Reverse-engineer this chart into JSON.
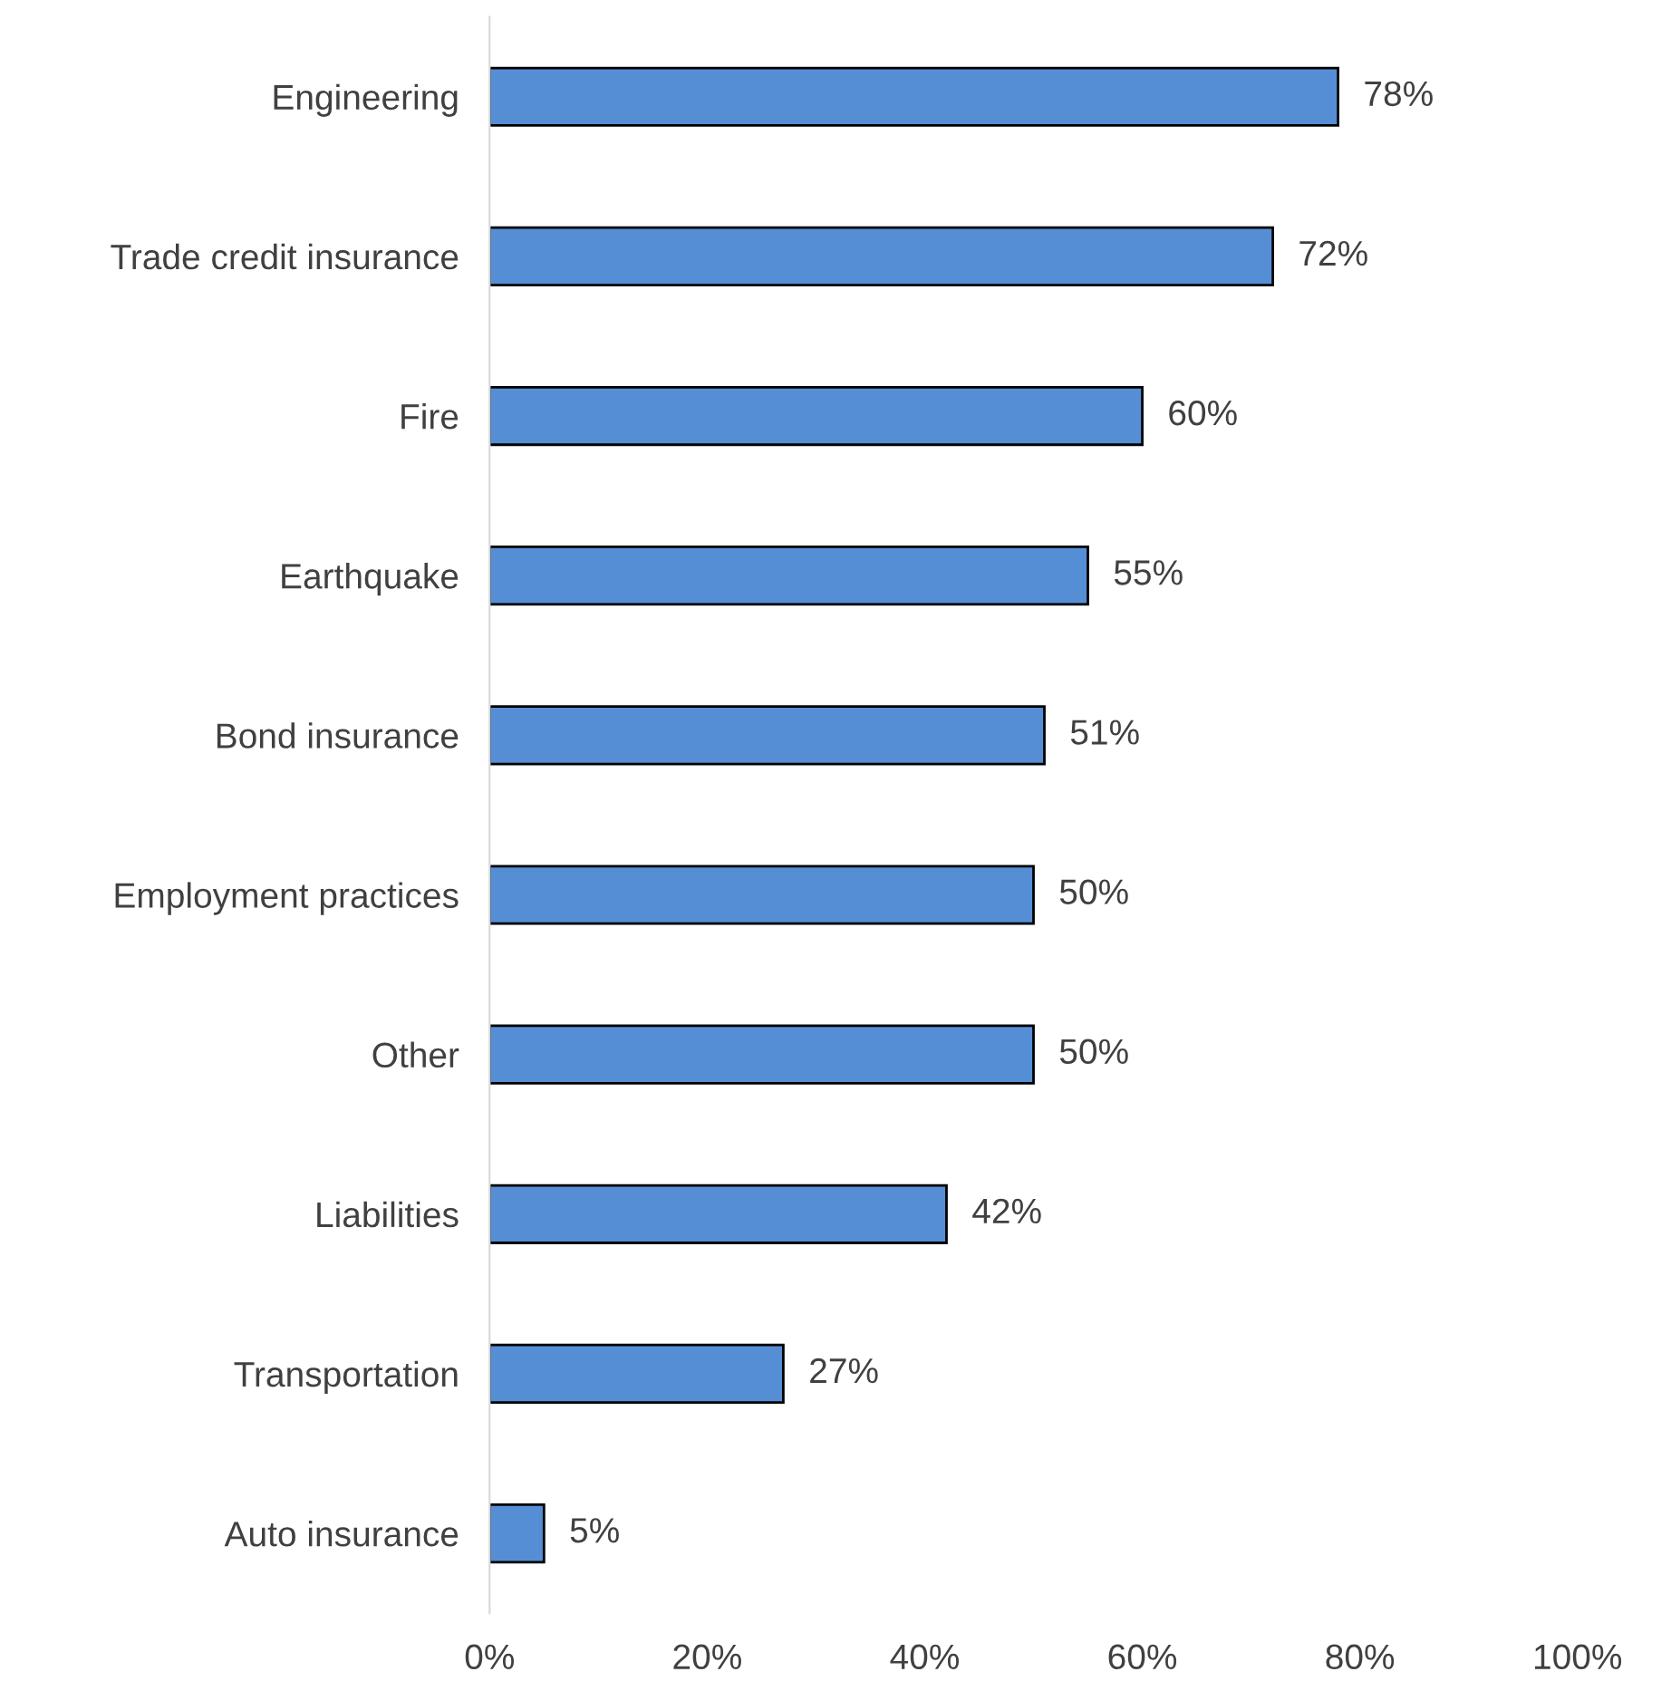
{
  "chart_data": {
    "type": "bar",
    "orientation": "horizontal",
    "categories": [
      "Engineering",
      "Trade credit insurance",
      "Fire",
      "Earthquake",
      "Bond insurance",
      "Employment practices",
      "Other",
      "Liabilities",
      "Transportation",
      "Auto insurance"
    ],
    "values": [
      78,
      72,
      60,
      55,
      51,
      50,
      50,
      42,
      27,
      5
    ],
    "value_labels": [
      "78%",
      "72%",
      "60%",
      "55%",
      "51%",
      "50%",
      "50%",
      "42%",
      "27%",
      "5%"
    ],
    "color": "#558ed5",
    "xlim": [
      0,
      100
    ],
    "xticks": [
      {
        "value": 0,
        "label": "0%"
      },
      {
        "value": 20,
        "label": "20%"
      },
      {
        "value": 40,
        "label": "40%"
      },
      {
        "value": 60,
        "label": "60%"
      },
      {
        "value": 80,
        "label": "80%"
      },
      {
        "value": 100,
        "label": "100%"
      }
    ],
    "grid": false,
    "legend": false
  }
}
